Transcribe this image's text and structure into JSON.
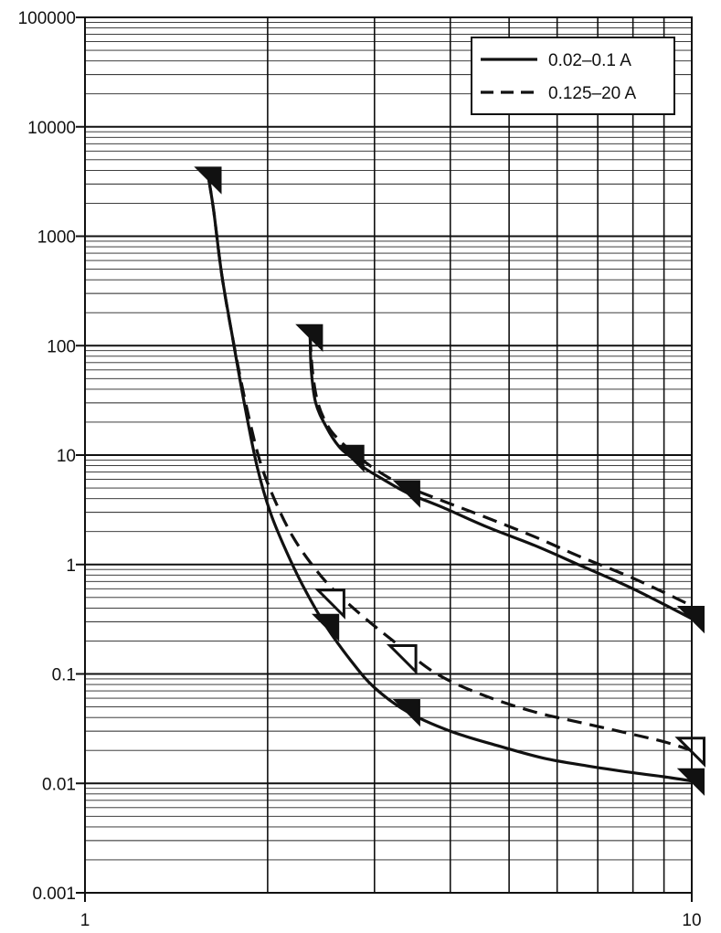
{
  "chart_data": {
    "type": "line",
    "title": "",
    "xlabel": "",
    "ylabel": "",
    "x_scale": "log",
    "y_scale": "log",
    "xlim": [
      1,
      10
    ],
    "ylim": [
      0.001,
      100000
    ],
    "grid": true,
    "legend_position": "top-right",
    "x_tick_labels": [
      {
        "value": 1,
        "label": "1"
      },
      {
        "value": 10,
        "label": "10"
      }
    ],
    "y_tick_labels": [
      {
        "value": 100000,
        "label": "100000"
      },
      {
        "value": 10000,
        "label": "10000"
      },
      {
        "value": 1000,
        "label": "1000"
      },
      {
        "value": 100,
        "label": "100"
      },
      {
        "value": 10,
        "label": "10"
      },
      {
        "value": 1,
        "label": "1"
      },
      {
        "value": 0.1,
        "label": "0.1"
      },
      {
        "value": 0.01,
        "label": "0.01"
      },
      {
        "value": 0.001,
        "label": "0.001"
      }
    ],
    "series": [
      {
        "name": "0.02–0.1 A",
        "style": "solid",
        "color": "#111111",
        "curves": [
          {
            "x": [
              1.6,
              1.63,
              1.68,
              1.75,
              1.83,
              1.92,
              2.02,
              2.15,
              2.3,
              2.5,
              2.75,
              3.0,
              3.4,
              4.0,
              4.8,
              5.7,
              6.7,
              8.0,
              9.0,
              10.0
            ],
            "y": [
              3300,
              1700,
              450,
              120,
              30,
              8,
              3.0,
              1.3,
              0.6,
              0.27,
              0.13,
              0.075,
              0.045,
              0.03,
              0.022,
              0.017,
              0.0145,
              0.0125,
              0.0115,
              0.0105
            ],
            "markers": [
              {
                "x": 1.6,
                "y": 3300,
                "fill": "filled"
              },
              {
                "x": 2.5,
                "y": 0.27,
                "fill": "filled"
              },
              {
                "x": 3.4,
                "y": 0.045,
                "fill": "filled"
              },
              {
                "x": 10.0,
                "y": 0.0105,
                "fill": "filled"
              }
            ]
          },
          {
            "x": [
              2.35,
              2.36,
              2.4,
              2.5,
              2.62,
              2.75,
              2.9,
              3.1,
              3.4,
              3.9,
              4.6,
              5.5,
              6.5,
              8.0,
              10.0
            ],
            "y": [
              120,
              60,
              30,
              18,
              12,
              9.5,
              7.5,
              6.0,
              4.5,
              3.3,
              2.2,
              1.5,
              1.0,
              0.6,
              0.32
            ],
            "markers": [
              {
                "x": 2.35,
                "y": 120,
                "fill": "filled"
              },
              {
                "x": 2.75,
                "y": 9.5,
                "fill": "filled"
              },
              {
                "x": 3.4,
                "y": 4.5,
                "fill": "filled"
              },
              {
                "x": 10.0,
                "y": 0.32,
                "fill": "filled"
              }
            ]
          }
        ]
      },
      {
        "name": "0.125–20 A",
        "style": "dashed",
        "color": "#111111",
        "curves": [
          {
            "x": [
              1.6,
              1.63,
              1.68,
              1.75,
              1.84,
              1.94,
              2.05,
              2.2,
              2.4,
              2.6,
              2.9,
              3.3,
              3.8,
              4.5,
              5.5,
              6.7,
              8.0,
              9.0,
              10.0
            ],
            "y": [
              3300,
              1700,
              450,
              120,
              30,
              9,
              4.0,
              1.8,
              0.9,
              0.55,
              0.32,
              0.18,
              0.1,
              0.065,
              0.045,
              0.035,
              0.028,
              0.024,
              0.02
            ],
            "markers": [
              {
                "x": 2.55,
                "y": 0.45,
                "fill": "open"
              },
              {
                "x": 3.35,
                "y": 0.14,
                "fill": "open"
              },
              {
                "x": 10.0,
                "y": 0.02,
                "fill": "open"
              }
            ]
          },
          {
            "x": [
              2.35,
              2.37,
              2.42,
              2.52,
              2.65,
              2.8,
              3.0,
              3.3,
              3.8,
              4.5,
              5.5,
              6.5,
              8.0,
              10.0
            ],
            "y": [
              120,
              60,
              30,
              18,
              13,
              10,
              7.5,
              5.5,
              4.0,
              2.8,
              1.8,
              1.2,
              0.75,
              0.42
            ],
            "markers": []
          }
        ]
      }
    ]
  }
}
